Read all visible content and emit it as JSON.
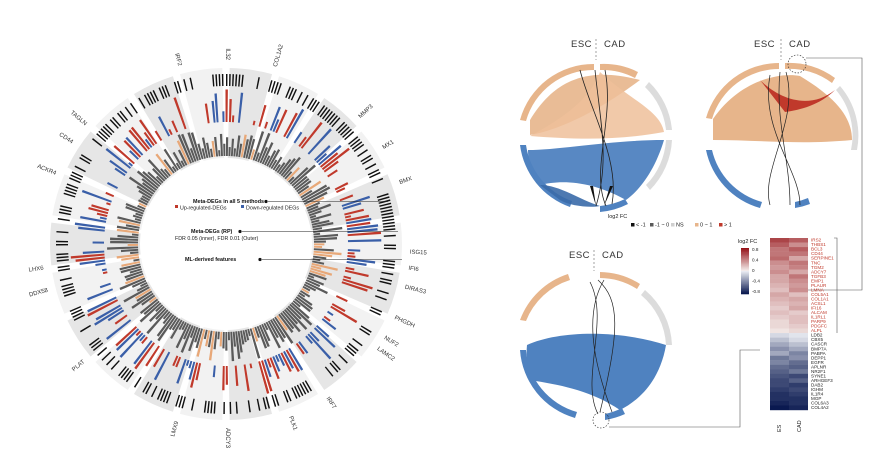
{
  "colors": {
    "up": "#c0392b",
    "down": "#3a5fa8",
    "orange": "#e8a878",
    "grey": "#5a5a5a",
    "ring_bg": "#ececec",
    "esc_arc": "#e7b58b",
    "blue_arc": "#4f82c0"
  },
  "circos": {
    "annotations": {
      "meta_all": "Meta-DEGs in all 5 methods",
      "up": "Up-regulated-DEGs",
      "down": "Down-regulated DEGs",
      "rp": "Meta-DEGs (RP)",
      "fdr": "FDR 0.05 (inner), FDR 0.01 (Outer)",
      "ml": "ML-derived features"
    },
    "genes": [
      {
        "name": "ISG15",
        "angle": 93
      },
      {
        "name": "IFI6",
        "angle": 98
      },
      {
        "name": "DIRAS3",
        "angle": 104
      },
      {
        "name": "PHGDH",
        "angle": 114
      },
      {
        "name": "NUF2",
        "angle": 121
      },
      {
        "name": "LAMC2",
        "angle": 125
      },
      {
        "name": "IRF7",
        "angle": 147
      },
      {
        "name": "PLK1",
        "angle": 160
      },
      {
        "name": "ADCY3",
        "angle": 180
      },
      {
        "name": "LMX9",
        "angle": 195
      },
      {
        "name": "PLAT",
        "angle": 230
      },
      {
        "name": "DDX58",
        "angle": 255
      },
      {
        "name": "LHX6",
        "angle": 262
      },
      {
        "name": "ACKR4",
        "angle": 292
      },
      {
        "name": "CD44",
        "angle": 303
      },
      {
        "name": "TAGLN",
        "angle": 310
      },
      {
        "name": "IRF2",
        "angle": 345
      },
      {
        "name": "IL32",
        "angle": 360
      },
      {
        "name": "COL1A2",
        "angle": 16
      },
      {
        "name": "MMP3",
        "angle": 47
      },
      {
        "name": "MX1",
        "angle": 59
      },
      {
        "name": "BMX",
        "angle": 71
      }
    ]
  },
  "chord_panels": [
    {
      "esc": "ESC",
      "cad": "CAD",
      "legend_title": "log2 FC",
      "legend": [
        "< -1",
        "-1 ~ 0",
        "NS",
        "0 ~ 1",
        "> 1"
      ]
    },
    {
      "esc": "ESC",
      "cad": "CAD"
    },
    {
      "esc": "ESC",
      "cad": "CAD"
    }
  ],
  "heatmap": {
    "legend_title": "log2 FC",
    "scale": [
      "0.8",
      "0.4",
      "0",
      "-0.4",
      "-0.8"
    ],
    "columns": [
      "ES",
      "CAD"
    ],
    "rows": [
      {
        "gene": "IRS2",
        "es": 0.7,
        "cad": 0.6,
        "up": true
      },
      {
        "gene": "THBS1",
        "es": 0.6,
        "cad": 0.4,
        "up": true
      },
      {
        "gene": "BCL3",
        "es": 0.5,
        "cad": 0.6,
        "up": true
      },
      {
        "gene": "CD44",
        "es": 0.5,
        "cad": 0.5,
        "up": true
      },
      {
        "gene": "SERPINE1",
        "es": 0.55,
        "cad": 0.3,
        "up": true
      },
      {
        "gene": "TNC",
        "es": 0.4,
        "cad": 0.5,
        "up": true
      },
      {
        "gene": "TGM2",
        "es": 0.35,
        "cad": 0.45,
        "up": true
      },
      {
        "gene": "ADCY7",
        "es": 0.4,
        "cad": 0.3,
        "up": true
      },
      {
        "gene": "TGFB3",
        "es": 0.3,
        "cad": 0.5,
        "up": true
      },
      {
        "gene": "EMP1",
        "es": 0.3,
        "cad": 0.4,
        "up": true
      },
      {
        "gene": "PLAUR",
        "es": 0.25,
        "cad": 0.35,
        "up": true
      },
      {
        "gene": "LMNA",
        "es": 0.2,
        "cad": 0.4,
        "up": true
      },
      {
        "gene": "COL5A1",
        "es": 0.3,
        "cad": 0.2,
        "up": true
      },
      {
        "gene": "COL1A1",
        "es": 0.25,
        "cad": 0.3,
        "up": true
      },
      {
        "gene": "ACSL1",
        "es": 0.2,
        "cad": 0.25,
        "up": true
      },
      {
        "gene": "IFI16",
        "es": 0.15,
        "cad": 0.3,
        "up": true
      },
      {
        "gene": "ALCAM",
        "es": 0.2,
        "cad": 0.15,
        "up": true
      },
      {
        "gene": "IL1RL1",
        "es": 0.15,
        "cad": 0.2,
        "up": true
      },
      {
        "gene": "PARP9",
        "es": 0.1,
        "cad": 0.2,
        "up": true
      },
      {
        "gene": "PDGFC",
        "es": 0.1,
        "cad": 0.15,
        "up": true
      },
      {
        "gene": "ALPL",
        "es": 0.05,
        "cad": 0.1,
        "up": true
      },
      {
        "gene": "LDB2",
        "es": -0.1,
        "cad": -0.05,
        "up": false
      },
      {
        "gene": "CBX5",
        "es": -0.2,
        "cad": -0.1,
        "up": false
      },
      {
        "gene": "CASCR",
        "es": -0.3,
        "cad": -0.2,
        "up": false
      },
      {
        "gene": "BMP7A",
        "es": -0.4,
        "cad": -0.3,
        "up": false
      },
      {
        "gene": "PABPA",
        "es": -0.3,
        "cad": -0.45,
        "up": false
      },
      {
        "gene": "DEPP1",
        "es": -0.5,
        "cad": -0.4,
        "up": false
      },
      {
        "gene": "EGFR",
        "es": -0.45,
        "cad": -0.55,
        "up": false
      },
      {
        "gene": "APLNR",
        "es": -0.55,
        "cad": -0.6,
        "up": false
      },
      {
        "gene": "NR2F1",
        "es": -0.6,
        "cad": -0.5,
        "up": false
      },
      {
        "gene": "SYNE1",
        "es": -0.65,
        "cad": -0.7,
        "up": false
      },
      {
        "gene": "ARHGEF3",
        "es": -0.7,
        "cad": -0.6,
        "up": false
      },
      {
        "gene": "DAB2",
        "es": -0.7,
        "cad": -0.75,
        "up": false
      },
      {
        "gene": "IGHM",
        "es": -0.75,
        "cad": -0.7,
        "up": false
      },
      {
        "gene": "IL1R4",
        "es": -0.8,
        "cad": -0.75,
        "up": false
      },
      {
        "gene": "MGP",
        "es": -0.8,
        "cad": -0.8,
        "up": false
      },
      {
        "gene": "COL6A3",
        "es": -0.85,
        "cad": -0.8,
        "up": false
      },
      {
        "gene": "COL4A2",
        "es": -0.9,
        "cad": -0.85,
        "up": false
      }
    ]
  },
  "chart_data": [
    {
      "type": "circos",
      "series": [
        {
          "name": "Meta-DEGs in all 5 methods"
        },
        {
          "name": "Meta-DEGs (RP)"
        },
        {
          "name": "ML-derived features"
        }
      ]
    },
    {
      "type": "chord",
      "groups": [
        "ESC",
        "CAD"
      ],
      "legend": [
        "< -1",
        "-1 ~ 0",
        "NS",
        "0 ~ 1",
        "> 1"
      ]
    },
    {
      "type": "heatmap",
      "columns": [
        "ES",
        "CAD"
      ],
      "value_range": [
        -0.8,
        0.8
      ]
    }
  ]
}
